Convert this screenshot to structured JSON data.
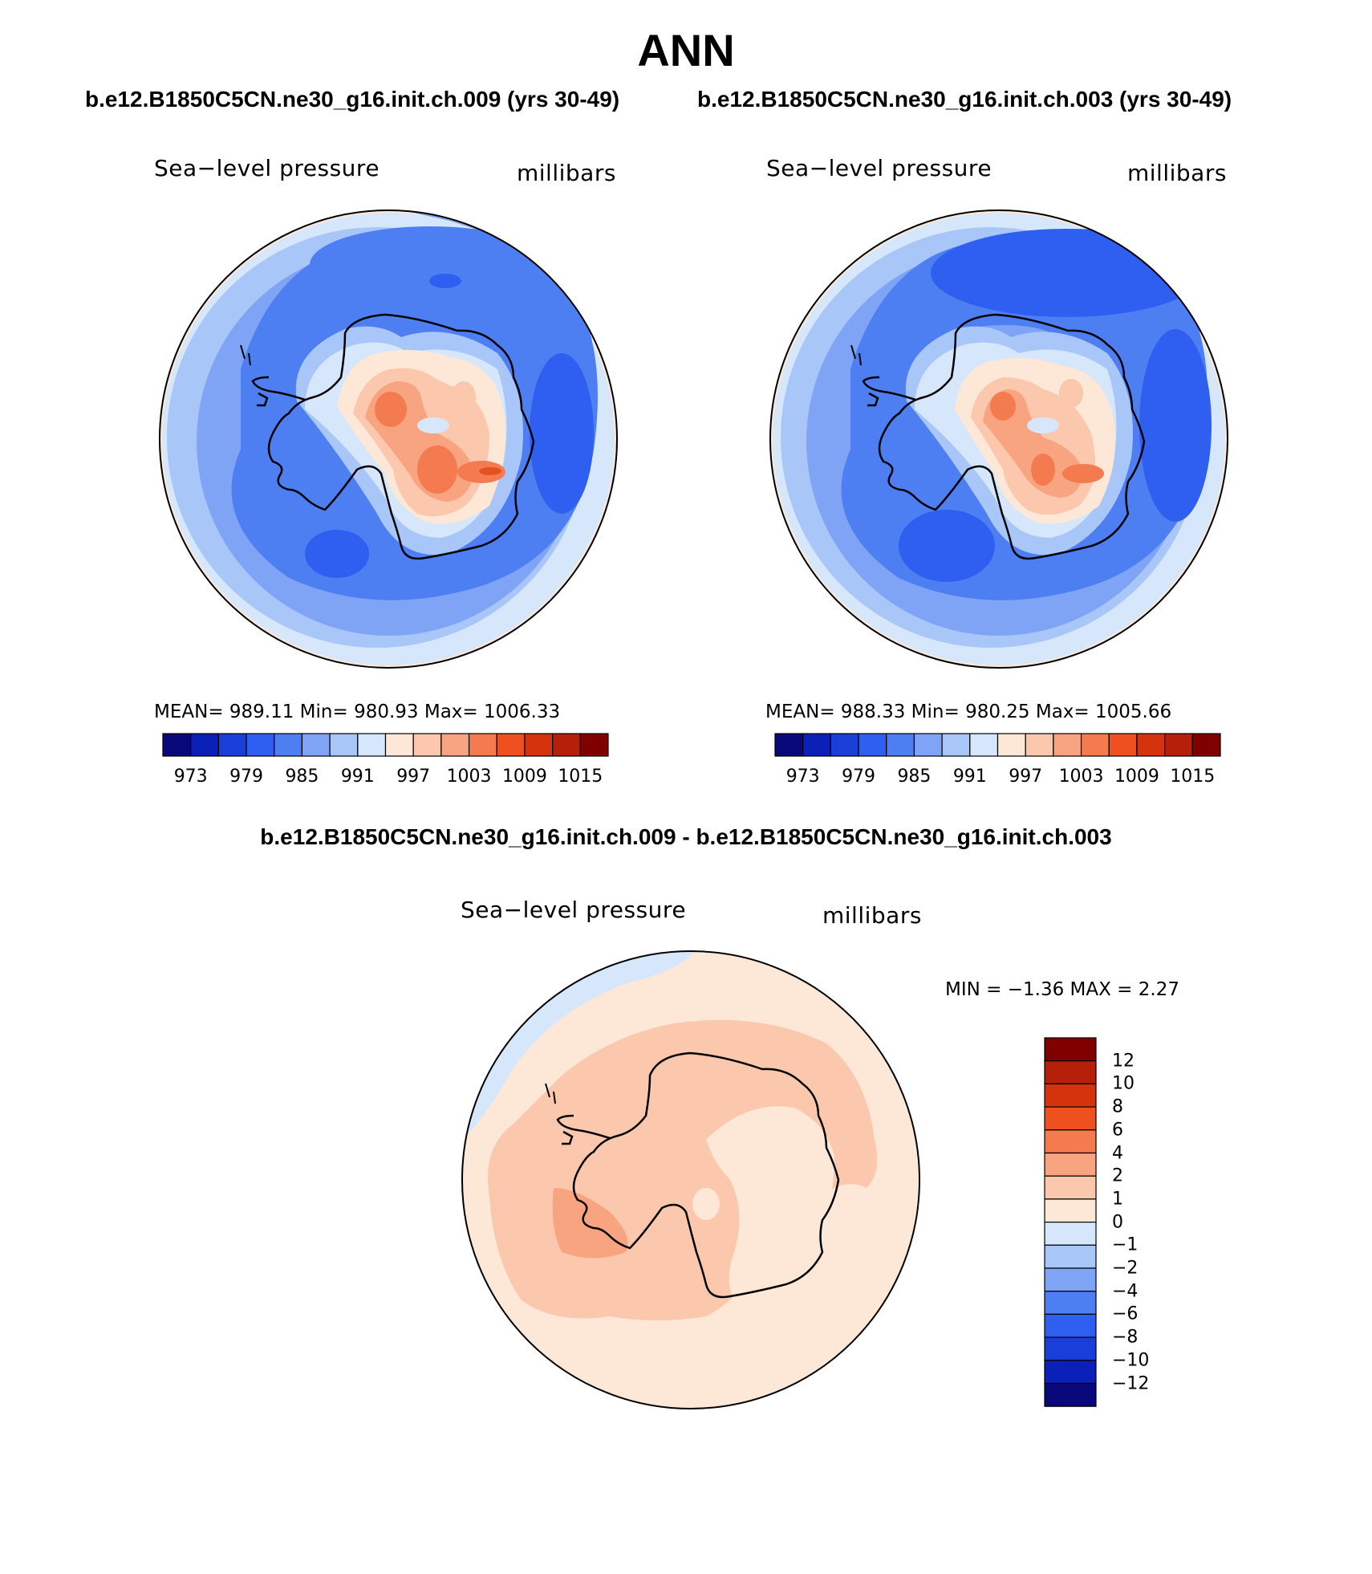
{
  "title": "ANN",
  "run_labels": [
    "b.e12.B1850C5CN.ne30_g16.init.ch.009 (yrs 30-49)",
    "b.e12.B1850C5CN.ne30_g16.init.ch.003 (yrs 30-49)"
  ],
  "diff_title": "b.e12.B1850C5CN.ne30_g16.init.ch.009 - b.e12.B1850C5CN.ne30_g16.init.ch.003",
  "panels": [
    {
      "variable": "Sea−level pressure",
      "units": "millibars",
      "stats": "MEAN=  989.11    Min=  980.93    Max=  1006.33",
      "center_fill": "#e2511f"
    },
    {
      "variable": "Sea−level pressure",
      "units": "millibars",
      "stats": "MEAN=  988.33    Min=  980.25    Max=  1005.66",
      "center_fill": "#f07e4e"
    }
  ],
  "diff_panel": {
    "variable": "Sea−level pressure",
    "units": "millibars",
    "minmax": "MIN =    −1.36  MAX =     2.27"
  },
  "colorbar": {
    "colors": [
      "#08087a",
      "#0a20b8",
      "#1a3fd8",
      "#2f5ff0",
      "#4d7ef2",
      "#7fa4f5",
      "#a9c6f8",
      "#d6e7fb",
      "#fde7d7",
      "#fbc7ad",
      "#f8a480",
      "#f47b50",
      "#ee5020",
      "#d5320e",
      "#b4200a",
      "#800000"
    ],
    "tick_labels": [
      "973",
      "979",
      "985",
      "991",
      "997",
      "1003",
      "1009",
      "1015"
    ]
  },
  "diff_colorbar": {
    "colors_top_to_bottom": [
      "#800000",
      "#b4200a",
      "#d5320e",
      "#ee5020",
      "#f47b50",
      "#f8a480",
      "#fbc7ad",
      "#fde7d7",
      "#d6e7fb",
      "#a9c6f8",
      "#7fa4f5",
      "#4d7ef2",
      "#2f5ff0",
      "#1a3fd8",
      "#0a20b8",
      "#08087a"
    ],
    "tick_labels": [
      "12",
      "10",
      "8",
      "6",
      "4",
      "2",
      "1",
      "0",
      "−1",
      "−2",
      "−4",
      "−6",
      "−8",
      "−10",
      "−12"
    ]
  }
}
